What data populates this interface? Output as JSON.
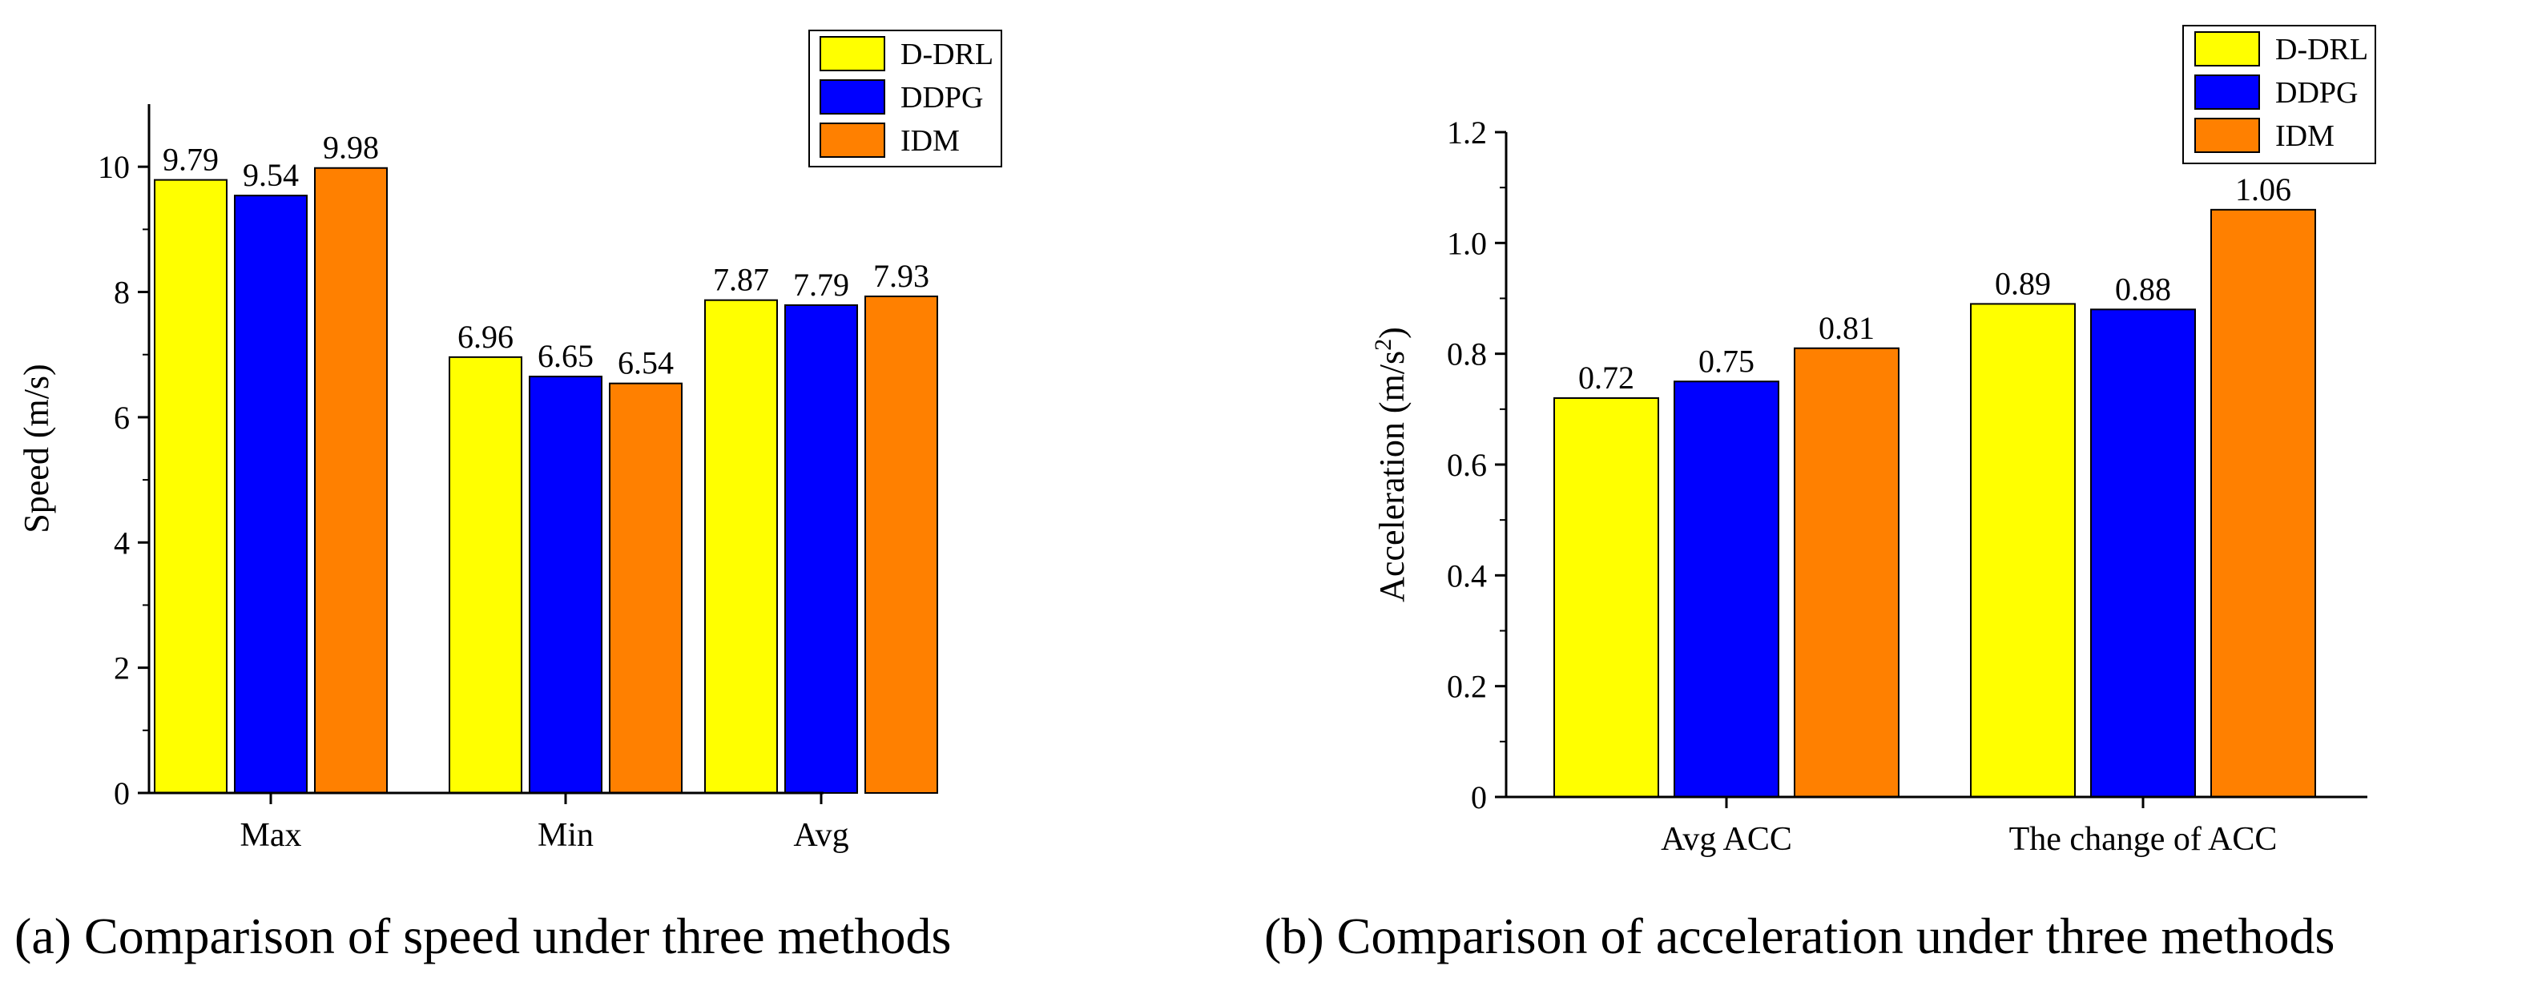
{
  "colors": {
    "D-DRL": "#ffff00",
    "DDPG": "#0000ff",
    "IDM": "#ff8000",
    "axis": "#000000"
  },
  "chart_data": [
    {
      "type": "bar",
      "categories": [
        "Max",
        "Min",
        "Avg"
      ],
      "series": [
        {
          "name": "D-DRL",
          "values": [
            9.79,
            6.96,
            7.87
          ],
          "labels": [
            "9.79",
            "6.96",
            "7.87"
          ]
        },
        {
          "name": "DDPG",
          "values": [
            9.54,
            6.65,
            7.79
          ],
          "labels": [
            "9.54",
            "6.65",
            "7.79"
          ]
        },
        {
          "name": "IDM",
          "values": [
            9.98,
            6.54,
            7.93
          ],
          "labels": [
            "9.98",
            "6.54",
            "7.93"
          ]
        }
      ],
      "ylabel": "Speed (m/s)",
      "xlabel": "",
      "ylim": [
        0,
        11
      ],
      "yticks": [
        0,
        2,
        4,
        6,
        8,
        10
      ],
      "ytick_labels": [
        "0",
        "2",
        "4",
        "6",
        "8",
        "10"
      ],
      "legend_position": "top-right",
      "caption": "(a) Comparison of speed under three methods"
    },
    {
      "type": "bar",
      "categories": [
        "Avg ACC",
        "The change of ACC"
      ],
      "series": [
        {
          "name": "D-DRL",
          "values": [
            0.72,
            0.89
          ],
          "labels": [
            "0.72",
            "0.89"
          ]
        },
        {
          "name": "DDPG",
          "values": [
            0.75,
            0.88
          ],
          "labels": [
            "0.75",
            "0.88"
          ]
        },
        {
          "name": "IDM",
          "values": [
            0.81,
            1.06
          ],
          "labels": [
            "0.81",
            "1.06"
          ]
        }
      ],
      "ylabel": "Acceleration (m/s",
      "ylabel_sup": "2",
      "ylabel_close": ")",
      "xlabel": "",
      "ylim": [
        0,
        1.2
      ],
      "yticks": [
        0,
        0.2,
        0.4,
        0.6,
        0.8,
        1.0,
        1.2
      ],
      "ytick_labels": [
        "0",
        "0.2",
        "0.4",
        "0.6",
        "0.8",
        "1.0",
        "1.2"
      ],
      "legend_position": "top-right",
      "caption": "(b) Comparison of acceleration under three methods"
    }
  ]
}
